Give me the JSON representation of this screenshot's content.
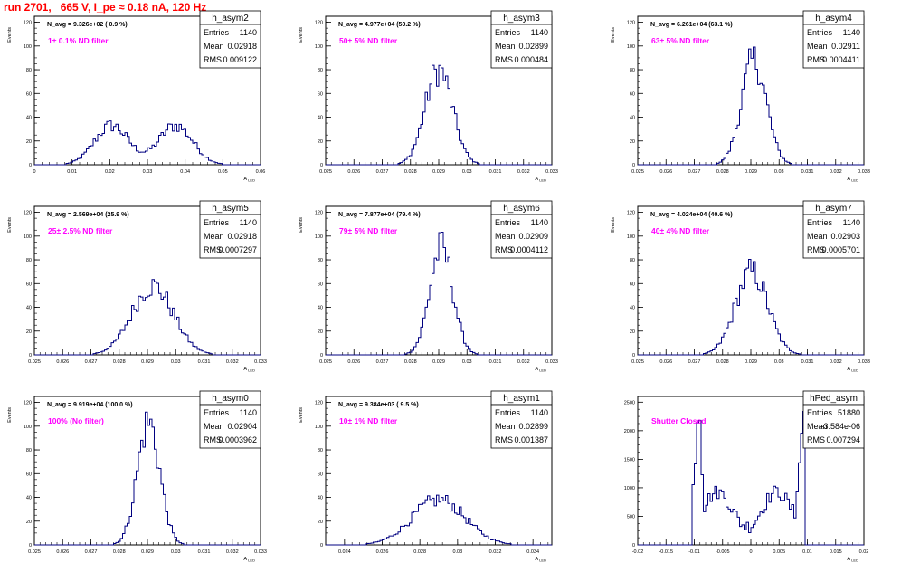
{
  "window": {
    "title": "run 2701,   665 V, I_pe ≈ 0.18 nA, 120 Hz"
  },
  "colors": {
    "title": "#ff0000",
    "annotation": "#ff00ff",
    "histogram": "#000080",
    "axis": "#000000"
  },
  "stat_labels": {
    "entries": "Entries",
    "mean": "Mean",
    "rms": "RMS"
  },
  "chart_data": [
    {
      "type": "bar",
      "name": "h_asym2",
      "navg": "N_avg = 9.326e+02 ( 0.9 %)",
      "filter": "1± 0.1% ND filter",
      "ylabel": "Events",
      "xlabel": "A",
      "xlabel_sub": "LED",
      "xlim": [
        0,
        0.06
      ],
      "ylim": [
        0,
        125
      ],
      "xticks": [
        0,
        0.01,
        0.02,
        0.03,
        0.04,
        0.05,
        0.06
      ],
      "xtick_labels": [
        "0",
        "0.01",
        "0.02",
        "0.03",
        "0.04",
        "0.05",
        "0.06"
      ],
      "yticks": [
        0,
        20,
        40,
        60,
        80,
        100,
        120
      ],
      "stats": {
        "entries": "1140",
        "mean": "0.02918",
        "rms": "0.009122"
      },
      "shape": {
        "peaks": [
          [
            0.0205,
            0.0045,
            33
          ],
          [
            0.0375,
            0.0045,
            33
          ]
        ]
      }
    },
    {
      "type": "bar",
      "name": "h_asym3",
      "navg": "N_avg = 4.977e+04 (50.2 %)",
      "filter": "50± 5% ND filter",
      "ylabel": "Events",
      "xlabel": "A",
      "xlabel_sub": "LED",
      "xlim": [
        0.025,
        0.033
      ],
      "ylim": [
        0,
        125
      ],
      "xticks": [
        0.025,
        0.026,
        0.027,
        0.028,
        0.029,
        0.03,
        0.031,
        0.032,
        0.033
      ],
      "xtick_labels": [
        "0.025",
        "0.026",
        "0.027",
        "0.028",
        "0.029",
        "0.03",
        "0.031",
        "0.032",
        "0.033"
      ],
      "yticks": [
        0,
        20,
        40,
        60,
        80,
        100,
        120
      ],
      "stats": {
        "entries": "1140",
        "mean": "0.02899",
        "rms": "0.000484"
      },
      "shape": {
        "peaks": [
          [
            0.029,
            0.00048,
            80
          ]
        ]
      }
    },
    {
      "type": "bar",
      "name": "h_asym4",
      "navg": "N_avg = 6.261e+04 (63.1 %)",
      "filter": "63± 5% ND filter",
      "ylabel": "Events",
      "xlabel": "A",
      "xlabel_sub": "LED",
      "xlim": [
        0.025,
        0.033
      ],
      "ylim": [
        0,
        125
      ],
      "xticks": [
        0.025,
        0.026,
        0.027,
        0.028,
        0.029,
        0.03,
        0.031,
        0.032,
        0.033
      ],
      "xtick_labels": [
        "0.025",
        "0.026",
        "0.027",
        "0.028",
        "0.029",
        "0.03",
        "0.031",
        "0.032",
        "0.033"
      ],
      "yticks": [
        0,
        20,
        40,
        60,
        80,
        100,
        120
      ],
      "stats": {
        "entries": "1140",
        "mean": "0.02911",
        "rms": "0.0004411"
      },
      "shape": {
        "peaks": [
          [
            0.02911,
            0.00044,
            88
          ]
        ]
      }
    },
    {
      "type": "bar",
      "name": "h_asym5",
      "navg": "N_avg = 2.569e+04 (25.9 %)",
      "filter": "25± 2.5% ND filter",
      "ylabel": "Events",
      "xlabel": "A",
      "xlabel_sub": "LED",
      "xlim": [
        0.025,
        0.033
      ],
      "ylim": [
        0,
        125
      ],
      "xticks": [
        0.025,
        0.026,
        0.027,
        0.028,
        0.029,
        0.03,
        0.031,
        0.032,
        0.033
      ],
      "xtick_labels": [
        "0.025",
        "0.026",
        "0.027",
        "0.028",
        "0.029",
        "0.03",
        "0.031",
        "0.032",
        "0.033"
      ],
      "yticks": [
        0,
        20,
        40,
        60,
        80,
        100,
        120
      ],
      "stats": {
        "entries": "1140",
        "mean": "0.02918",
        "rms": "0.0007297"
      },
      "shape": {
        "peaks": [
          [
            0.02918,
            0.00073,
            58
          ]
        ]
      }
    },
    {
      "type": "bar",
      "name": "h_asym6",
      "navg": "N_avg = 7.877e+04 (79.4 %)",
      "filter": "79± 5% ND filter",
      "ylabel": "Events",
      "xlabel": "A",
      "xlabel_sub": "LED",
      "xlim": [
        0.025,
        0.033
      ],
      "ylim": [
        0,
        125
      ],
      "xticks": [
        0.025,
        0.026,
        0.027,
        0.028,
        0.029,
        0.03,
        0.031,
        0.032,
        0.033
      ],
      "xtick_labels": [
        "0.025",
        "0.026",
        "0.027",
        "0.028",
        "0.029",
        "0.03",
        "0.031",
        "0.032",
        "0.033"
      ],
      "yticks": [
        0,
        20,
        40,
        60,
        80,
        100,
        120
      ],
      "stats": {
        "entries": "1140",
        "mean": "0.02909",
        "rms": "0.0004112"
      },
      "shape": {
        "peaks": [
          [
            0.02909,
            0.00041,
            90
          ]
        ]
      }
    },
    {
      "type": "bar",
      "name": "h_asym7",
      "navg": "N_avg = 4.024e+04 (40.6 %)",
      "filter": "40± 4% ND filter",
      "ylabel": "Events",
      "xlabel": "A",
      "xlabel_sub": "LED",
      "xlim": [
        0.025,
        0.033
      ],
      "ylim": [
        0,
        125
      ],
      "xticks": [
        0.025,
        0.026,
        0.027,
        0.028,
        0.029,
        0.03,
        0.031,
        0.032,
        0.033
      ],
      "xtick_labels": [
        "0.025",
        "0.026",
        "0.027",
        "0.028",
        "0.029",
        "0.03",
        "0.031",
        "0.032",
        "0.033"
      ],
      "yticks": [
        0,
        20,
        40,
        60,
        80,
        100,
        120
      ],
      "stats": {
        "entries": "1140",
        "mean": "0.02903",
        "rms": "0.0005701"
      },
      "shape": {
        "peaks": [
          [
            0.02903,
            0.00057,
            70
          ]
        ]
      }
    },
    {
      "type": "bar",
      "name": "h_asym0",
      "navg": "N_avg = 9.919e+04 (100.0 %)",
      "filter": "100% (No filter)",
      "ylabel": "Events",
      "xlabel": "A",
      "xlabel_sub": "LED",
      "xlim": [
        0.025,
        0.033
      ],
      "ylim": [
        0,
        125
      ],
      "xticks": [
        0.025,
        0.026,
        0.027,
        0.028,
        0.029,
        0.03,
        0.031,
        0.032,
        0.033
      ],
      "xtick_labels": [
        "0.025",
        "0.026",
        "0.027",
        "0.028",
        "0.029",
        "0.03",
        "0.031",
        "0.032",
        "0.033"
      ],
      "yticks": [
        0,
        20,
        40,
        60,
        80,
        100,
        120
      ],
      "stats": {
        "entries": "1140",
        "mean": "0.02904",
        "rms": "0.0003962"
      },
      "shape": {
        "peaks": [
          [
            0.02904,
            0.0004,
            103
          ]
        ]
      }
    },
    {
      "type": "bar",
      "name": "h_asym1",
      "navg": "N_avg = 9.384e+03 ( 9.5 %)",
      "filter": "10± 1% ND filter",
      "ylabel": "Events",
      "xlabel": "A",
      "xlabel_sub": "LED",
      "xlim": [
        0.023,
        0.035
      ],
      "ylim": [
        0,
        125
      ],
      "xticks": [
        0.024,
        0.026,
        0.028,
        0.03,
        0.032,
        0.034
      ],
      "xtick_labels": [
        "0.024",
        "0.026",
        "0.028",
        "0.03",
        "0.032",
        "0.034"
      ],
      "yticks": [
        0,
        20,
        40,
        60,
        80,
        100,
        120
      ],
      "stats": {
        "entries": "1140",
        "mean": "0.02899",
        "rms": "0.001387"
      },
      "shape": {
        "peaks": [
          [
            0.029,
            0.0014,
            38
          ]
        ]
      }
    },
    {
      "type": "bar",
      "name": "hPed_asym",
      "navg": "",
      "filter": "Shutter Closed",
      "ylabel": "",
      "xlabel": "A",
      "xlabel_sub": "LED",
      "xlim": [
        -0.02,
        0.02
      ],
      "ylim": [
        0,
        2600
      ],
      "xticks": [
        -0.02,
        -0.015,
        -0.01,
        -0.005,
        0,
        0.005,
        0.01,
        0.015,
        0.02
      ],
      "xtick_labels": [
        "-0.02",
        "-0.015",
        "-0.01",
        "-0.005",
        "0",
        "0.005",
        "0.01",
        "0.015",
        "0.02"
      ],
      "yticks": [
        0,
        500,
        1000,
        1500,
        2000,
        2500
      ],
      "stats": {
        "entries": "51880",
        "mean": "-3.584e-06",
        "rms": "0.007294"
      },
      "shape": {
        "ped": true
      }
    }
  ]
}
